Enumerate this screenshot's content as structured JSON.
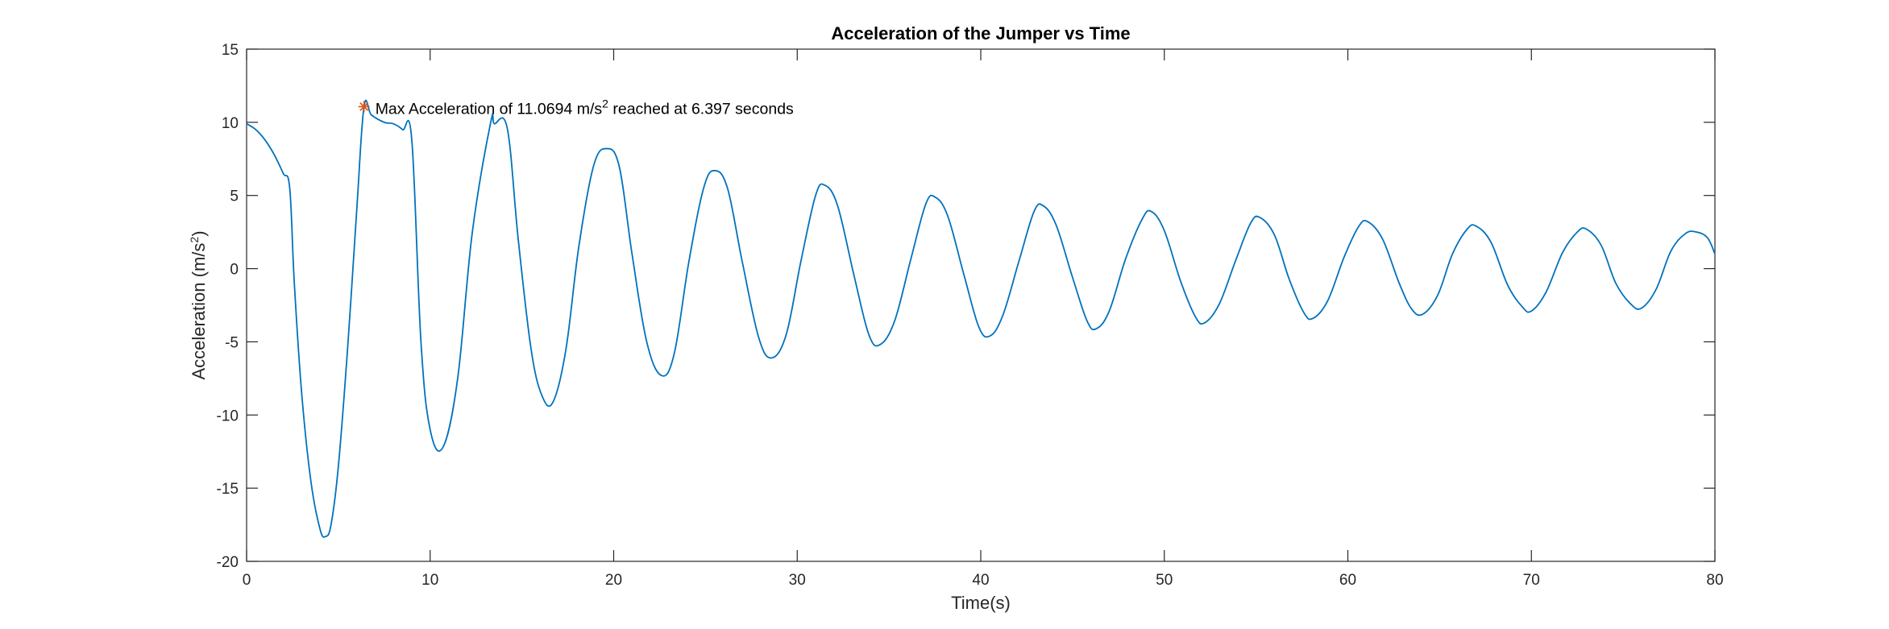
{
  "colors": {
    "series": "#0072BD",
    "marker": "#D95319",
    "axis": "#262626",
    "background": "#ffffff"
  },
  "chart_data": {
    "type": "line",
    "title": "Acceleration of the Jumper vs Time",
    "xlabel": "Time(s)",
    "ylabel_text": "Acceleration (m/s",
    "ylabel_sup": "2",
    "ylabel_tail": ")",
    "xlim": [
      0,
      80
    ],
    "ylim": [
      -20,
      15
    ],
    "xticks": [
      0,
      10,
      20,
      30,
      40,
      50,
      60,
      70,
      80
    ],
    "yticks": [
      -20,
      -15,
      -10,
      -5,
      0,
      5,
      10,
      15
    ],
    "grid": false,
    "series": [
      {
        "x": [
          0,
          0.5,
          1.0,
          1.5,
          2.0,
          2.35,
          2.6,
          3.0,
          3.5,
          4.0,
          4.3,
          4.6,
          5.0,
          5.5,
          6.0,
          6.397,
          6.8,
          7.5,
          8.0,
          8.5,
          9.0,
          9.5,
          10.0,
          10.7,
          11.5,
          12.3,
          13.3,
          13.5,
          14.2,
          14.8,
          15.5,
          16.1,
          16.7,
          17.4,
          18.1,
          18.9,
          19.6,
          20.3,
          21.0,
          21.8,
          22.6,
          23.3,
          24.1,
          24.9,
          25.5,
          26.2,
          27.0,
          27.9,
          28.6,
          29.4,
          30.2,
          31.0,
          31.5,
          32.2,
          33.1,
          33.9,
          34.5,
          35.3,
          36.2,
          37.0,
          37.5,
          38.2,
          39.1,
          39.9,
          40.5,
          41.2,
          42.1,
          42.9,
          43.4,
          44.1,
          45.0,
          45.8,
          46.3,
          47.0,
          47.9,
          48.8,
          49.3,
          50.0,
          50.9,
          51.7,
          52.2,
          53.0,
          53.9,
          54.7,
          55.2,
          56.0,
          56.8,
          57.6,
          58.1,
          58.9,
          59.8,
          60.6,
          61.1,
          61.9,
          62.8,
          63.5,
          64.1,
          64.9,
          65.7,
          66.5,
          67.0,
          67.8,
          68.7,
          69.5,
          70.0,
          70.8,
          71.7,
          72.5,
          73.0,
          73.8,
          74.6,
          75.4,
          76.0,
          76.8,
          77.6,
          78.4,
          79.0,
          79.6,
          80.0
        ],
        "y": [
          9.9,
          9.5,
          8.8,
          7.8,
          6.5,
          5.5,
          -1.0,
          -8.5,
          -14.5,
          -17.8,
          -18.3,
          -17.5,
          -13.5,
          -5.5,
          4.0,
          11.0694,
          10.5,
          10.0,
          9.9,
          9.5,
          8.8,
          -5.0,
          -11.0,
          -12.2,
          -7.5,
          2.5,
          10.0,
          9.9,
          9.6,
          2.0,
          -5.5,
          -8.7,
          -9.1,
          -5.5,
          1.5,
          7.0,
          8.2,
          7.0,
          1.0,
          -5.0,
          -7.3,
          -5.8,
          0.5,
          5.5,
          6.7,
          5.5,
          0.5,
          -4.7,
          -6.1,
          -4.5,
          0.5,
          5.0,
          5.7,
          4.3,
          -0.5,
          -4.5,
          -5.2,
          -3.6,
          0.7,
          4.4,
          4.9,
          3.6,
          -0.5,
          -4.0,
          -4.6,
          -3.2,
          0.6,
          3.9,
          4.3,
          3.0,
          -0.6,
          -3.6,
          -4.1,
          -2.9,
          0.7,
          3.4,
          3.9,
          2.6,
          -0.9,
          -3.3,
          -3.7,
          -2.4,
          0.6,
          3.1,
          3.5,
          2.3,
          -0.7,
          -3.0,
          -3.4,
          -2.2,
          0.8,
          2.9,
          3.2,
          2.0,
          -1.0,
          -2.8,
          -3.1,
          -1.8,
          1.0,
          2.7,
          2.9,
          1.8,
          -1.1,
          -2.6,
          -2.9,
          -1.6,
          1.1,
          2.5,
          2.7,
          1.6,
          -1.0,
          -2.4,
          -2.7,
          -1.4,
          1.2,
          2.4,
          2.5,
          2.1,
          1.0
        ]
      }
    ],
    "max_point": {
      "x": 6.397,
      "y": 11.0694
    },
    "annotation": {
      "prefix": "Max Acceleration of 11.0694 m/s",
      "sup": "2",
      "suffix": " reached at 6.397 seconds"
    }
  }
}
